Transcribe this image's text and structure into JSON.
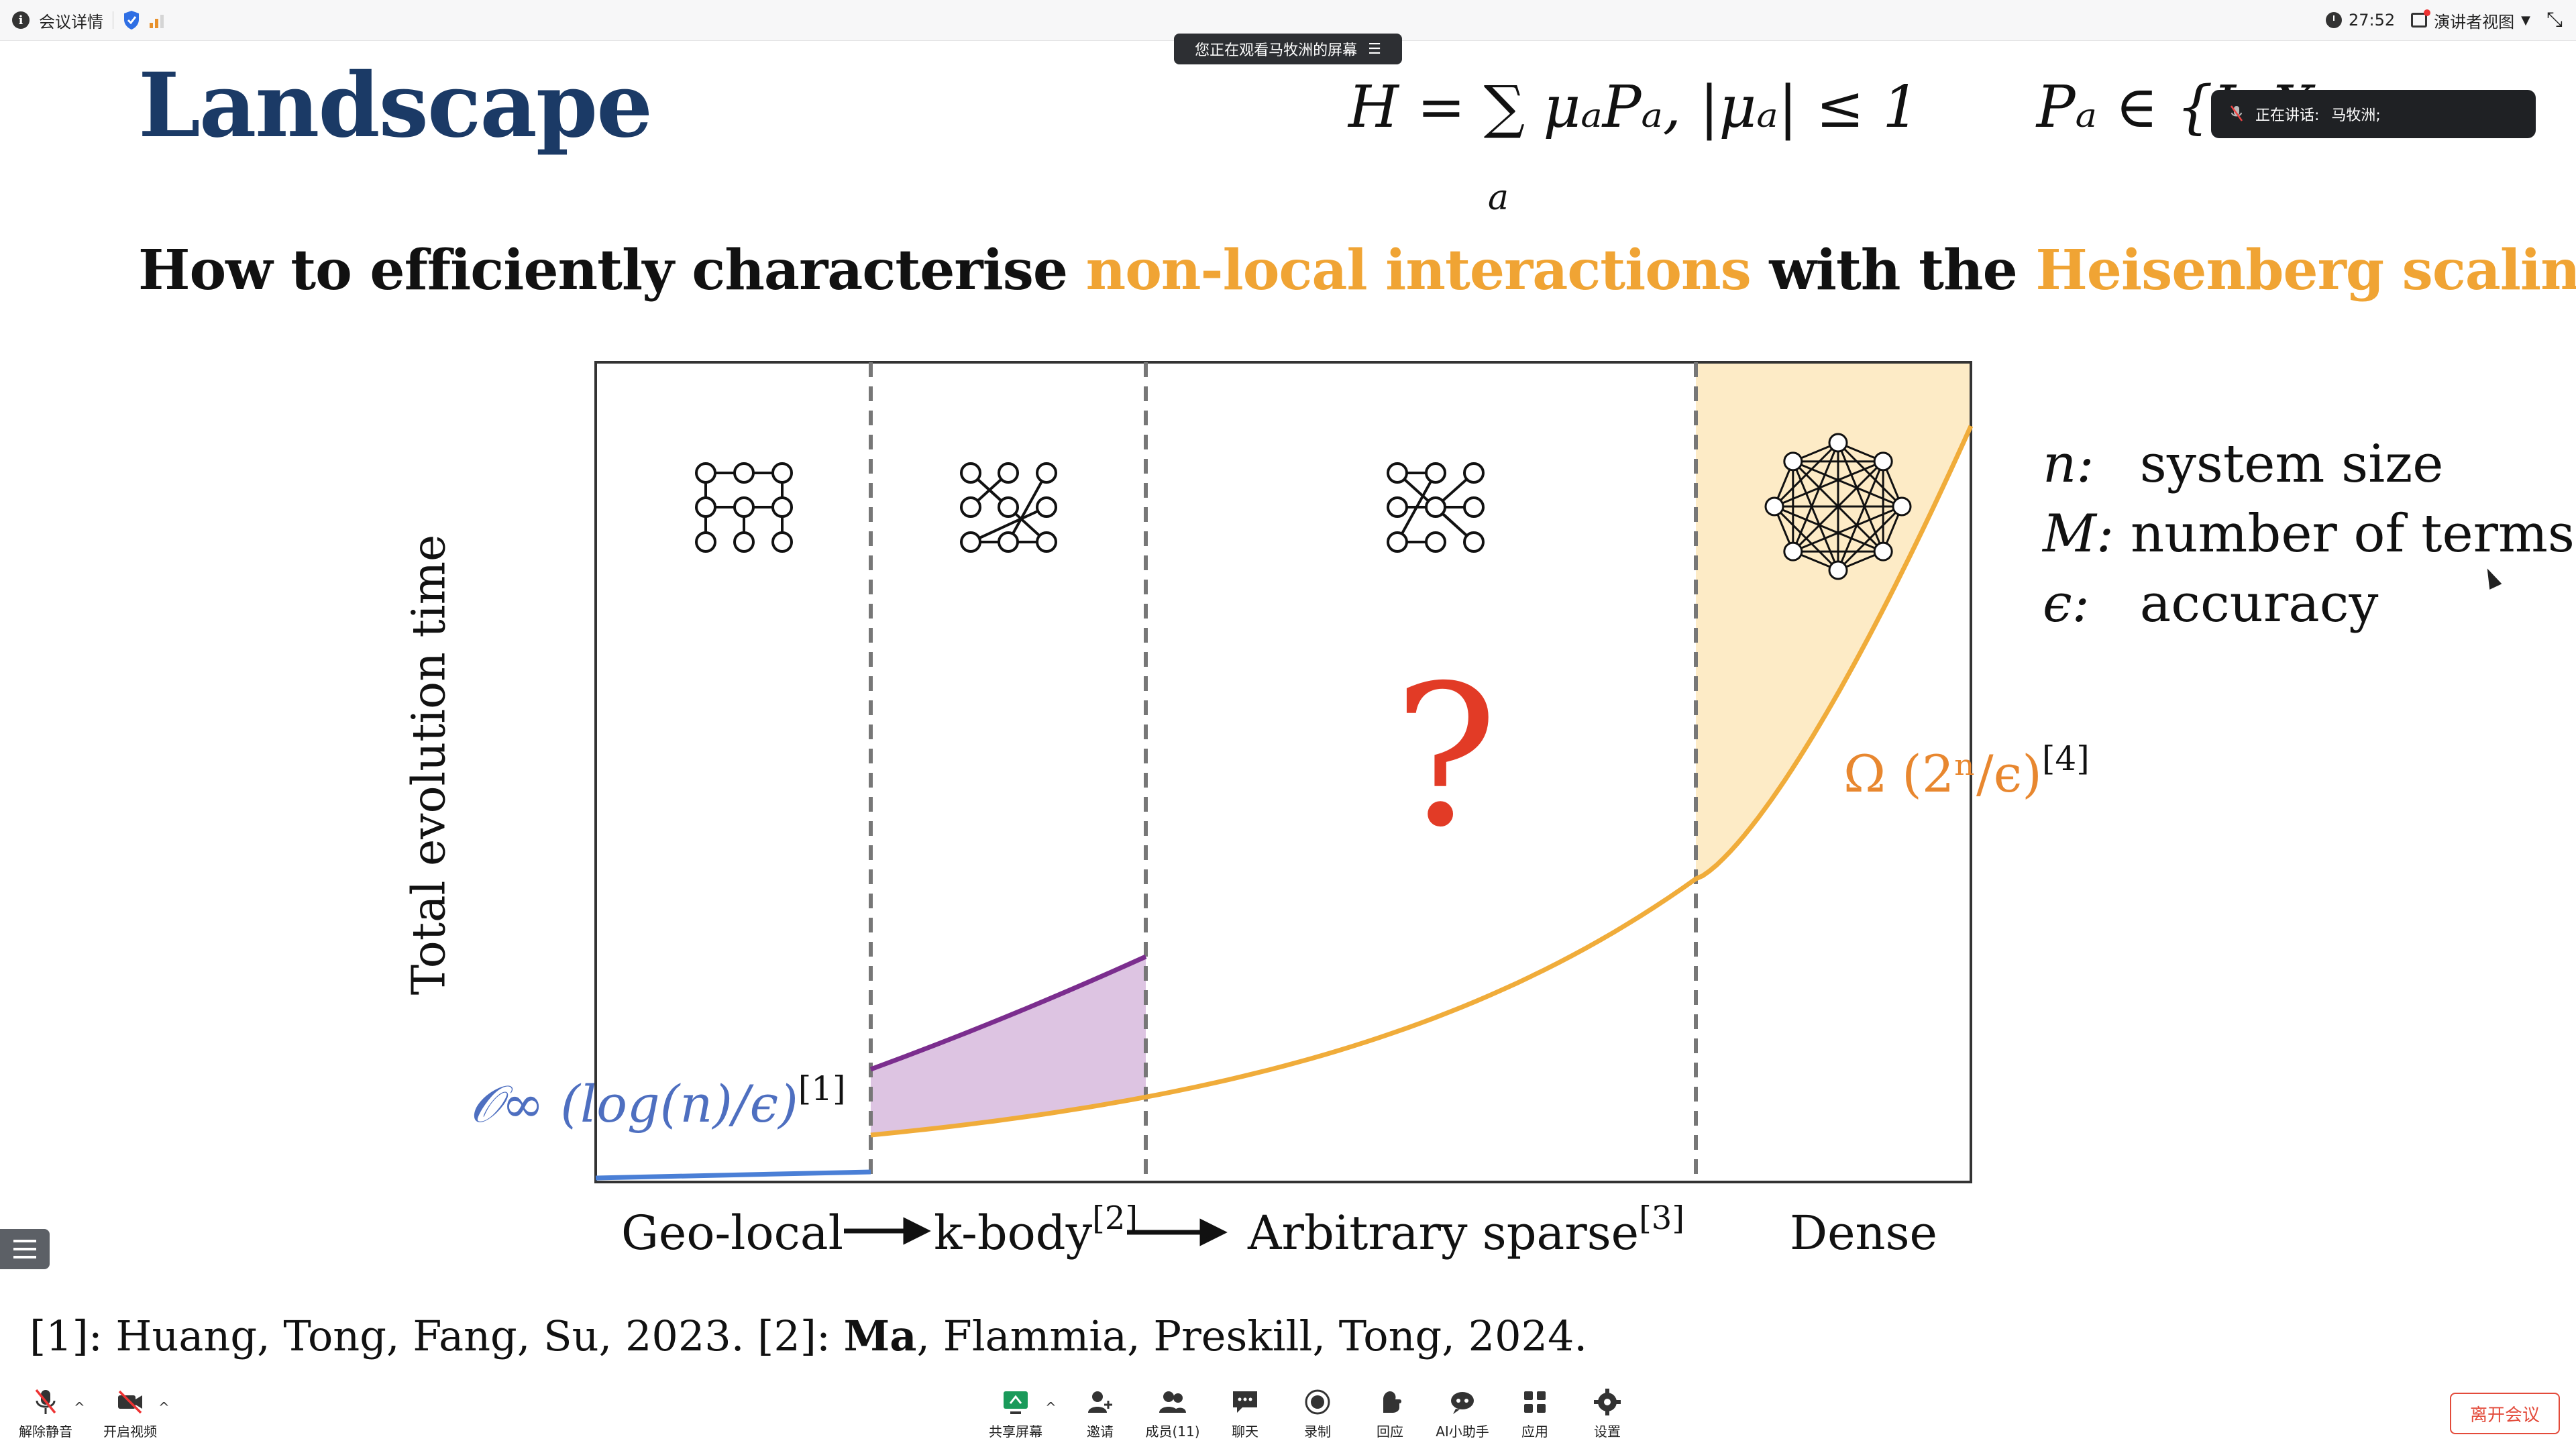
{
  "topbar": {
    "meeting_details": "会议详情",
    "timer": "27:52",
    "presenter_view": "演讲者视图"
  },
  "overlays": {
    "viewing_banner": "您正在观看马牧洲的屏幕",
    "speaking_label": "正在讲话:",
    "speaking_name": "马牧洲;"
  },
  "slide": {
    "title": "Landscape",
    "formula_main": "H = ∑ μₐPₐ,  |μₐ| ≤ 1",
    "formula_sum_index": "a",
    "formula_paulis": "Pₐ ∈ {I, X,",
    "question_part1": "How to efficiently characterise ",
    "question_highlight1": "non-local interactions",
    "question_part2": " with the ",
    "question_highlight2": "Heisenberg scaling?",
    "legend": [
      {
        "symbol": "n:",
        "text": "system size"
      },
      {
        "symbol": "M:",
        "text": "number of terms"
      },
      {
        "symbol": "ϵ:",
        "text": "accuracy"
      }
    ],
    "reference_1": "[1]: Huang, Tong, Fang, Su, 2023. [2]: ",
    "reference_bold": "Ma",
    "reference_2": ", Flammia, Preskill, Tong, 2024."
  },
  "chart_data": {
    "type": "area",
    "ylabel": "Total evolution time",
    "regions": [
      "Geo-local",
      "k-body",
      "Arbitrary sparse",
      "Dense"
    ],
    "region_citations": [
      "",
      "[2]",
      "[3]",
      ""
    ],
    "lower_bound_label": "𝒪∞ (log(n)/ϵ)",
    "lower_bound_citation": "[1]",
    "upper_bound_label": "Ω (2ⁿ/ϵ)",
    "upper_bound_citation": "[4]",
    "unknown_marker": "?",
    "colors": {
      "geo_local_line": "#4a7fd6",
      "k_body_line": "#7b2d8e",
      "k_body_fill": "#ddc4e2",
      "bound_curve": "#f0ac3a",
      "dense_fill": "#fdebc6",
      "question_mark": "#e23b26",
      "lower_label": "#4e6fc0",
      "upper_label": "#e8872f"
    }
  },
  "bottombar": {
    "items": [
      {
        "label": "解除静音",
        "icon": "muted-mic-icon"
      },
      {
        "label": "开启视频",
        "icon": "camera-off-icon"
      },
      {
        "label": "共享屏幕",
        "icon": "share-screen-icon"
      },
      {
        "label": "邀请",
        "icon": "invite-icon"
      },
      {
        "label": "成员(11)",
        "icon": "members-icon"
      },
      {
        "label": "聊天",
        "icon": "chat-icon"
      },
      {
        "label": "录制",
        "icon": "record-icon"
      },
      {
        "label": "回应",
        "icon": "reaction-icon"
      },
      {
        "label": "AI小助手",
        "icon": "ai-assistant-icon"
      },
      {
        "label": "应用",
        "icon": "apps-icon"
      },
      {
        "label": "设置",
        "icon": "settings-icon"
      }
    ],
    "leave_label": "离开会议"
  }
}
